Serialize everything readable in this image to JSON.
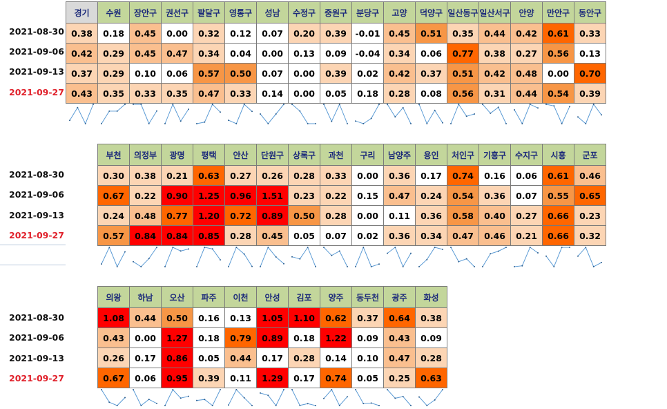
{
  "dates": [
    "2021-08-30",
    "2021-09-06",
    "2021-09-13",
    "2021-09-27"
  ],
  "highlight_date": "2021-09-27",
  "colors": {
    "header_bg": "#c3d69b",
    "header_first_bg": "#d9d9d9",
    "header_text": "#1c2a7a",
    "date_highlight": "#e0202a",
    "sparkline": "#5b9bd5",
    "scale": [
      "#ffffff",
      "#fcd5b4",
      "#fabf8f",
      "#f79646",
      "#ff6600",
      "#ff0000"
    ]
  },
  "tables": [
    {
      "regions": [
        "경기",
        "수원",
        "장안구",
        "권선구",
        "팔달구",
        "영통구",
        "성남",
        "수정구",
        "중원구",
        "분당구",
        "고양",
        "덕양구",
        "일산동구",
        "일산서구",
        "안양",
        "만안구",
        "동안구"
      ],
      "rows": [
        [
          "0.38",
          "0.18",
          "0.45",
          "0.00",
          "0.32",
          "0.12",
          "0.07",
          "0.20",
          "0.39",
          "-0.01",
          "0.45",
          "0.51",
          "0.35",
          "0.44",
          "0.42",
          "0.61",
          "0.33"
        ],
        [
          "0.42",
          "0.29",
          "0.45",
          "0.47",
          "0.34",
          "0.04",
          "0.00",
          "0.13",
          "0.09",
          "-0.04",
          "0.34",
          "0.06",
          "0.77",
          "0.38",
          "0.27",
          "0.56",
          "0.13"
        ],
        [
          "0.37",
          "0.29",
          "0.10",
          "0.06",
          "0.57",
          "0.50",
          "0.07",
          "0.00",
          "0.39",
          "0.02",
          "0.42",
          "0.37",
          "0.51",
          "0.42",
          "0.48",
          "0.00",
          "0.70"
        ],
        [
          "0.43",
          "0.35",
          "0.33",
          "0.35",
          "0.47",
          "0.33",
          "0.14",
          "0.00",
          "0.05",
          "0.18",
          "0.28",
          "0.08",
          "0.56",
          "0.31",
          "0.44",
          "0.54",
          "0.39"
        ]
      ]
    },
    {
      "regions": [
        "부천",
        "의정부",
        "광명",
        "평택",
        "안산",
        "단원구",
        "상록구",
        "과천",
        "구리",
        "남양주",
        "용인",
        "처인구",
        "기흥구",
        "수지구",
        "시흥",
        "군포"
      ],
      "rows": [
        [
          "0.30",
          "0.38",
          "0.21",
          "0.63",
          "0.27",
          "0.26",
          "0.28",
          "0.33",
          "0.00",
          "0.36",
          "0.17",
          "0.74",
          "0.16",
          "0.06",
          "0.61",
          "0.46"
        ],
        [
          "0.67",
          "0.22",
          "0.90",
          "1.25",
          "0.96",
          "1.51",
          "0.23",
          "0.22",
          "0.15",
          "0.47",
          "0.24",
          "0.54",
          "0.36",
          "0.07",
          "0.55",
          "0.65"
        ],
        [
          "0.24",
          "0.48",
          "0.77",
          "1.20",
          "0.72",
          "0.89",
          "0.50",
          "0.28",
          "0.00",
          "0.11",
          "0.36",
          "0.58",
          "0.40",
          "0.27",
          "0.66",
          "0.23"
        ],
        [
          "0.57",
          "0.84",
          "0.84",
          "0.85",
          "0.28",
          "0.45",
          "0.05",
          "0.07",
          "0.02",
          "0.36",
          "0.34",
          "0.47",
          "0.46",
          "0.21",
          "0.66",
          "0.32"
        ]
      ]
    },
    {
      "regions": [
        "의왕",
        "하남",
        "오산",
        "파주",
        "이천",
        "안성",
        "김포",
        "양주",
        "동두천",
        "광주",
        "화성"
      ],
      "rows": [
        [
          "1.08",
          "0.44",
          "0.50",
          "0.16",
          "0.13",
          "1.05",
          "1.10",
          "0.62",
          "0.37",
          "0.64",
          "0.38"
        ],
        [
          "0.43",
          "0.00",
          "1.27",
          "0.18",
          "0.79",
          "0.89",
          "0.18",
          "1.22",
          "0.09",
          "0.43",
          "0.09"
        ],
        [
          "0.26",
          "0.17",
          "0.86",
          "0.05",
          "0.44",
          "0.17",
          "0.28",
          "0.14",
          "0.10",
          "0.47",
          "0.28"
        ],
        [
          "0.67",
          "0.06",
          "0.95",
          "0.39",
          "0.11",
          "1.29",
          "0.17",
          "0.74",
          "0.05",
          "0.25",
          "0.63"
        ]
      ]
    }
  ]
}
